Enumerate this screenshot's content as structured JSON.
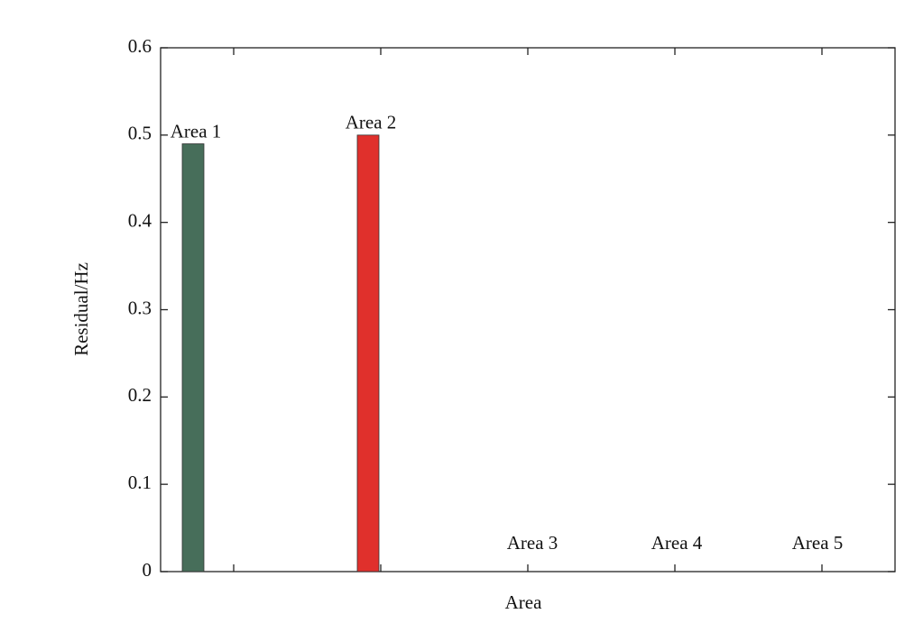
{
  "chart_data": {
    "type": "bar",
    "x_label": "Area",
    "y_label": "Residual/Hz",
    "categories": [
      "Area 1",
      "Area 2",
      "Area 3",
      "Area 4",
      "Area 5"
    ],
    "values": [
      0.49,
      0.5,
      0,
      0,
      0
    ],
    "colors": [
      "#476e5a",
      "#e0302c",
      "#3b5ba5",
      "#e8a33d",
      "#7b4fa0"
    ],
    "ylim": [
      0,
      0.6
    ],
    "yticks": [
      0,
      0.1,
      0.2,
      0.3,
      0.4,
      0.5,
      0.6
    ],
    "grid": false
  }
}
